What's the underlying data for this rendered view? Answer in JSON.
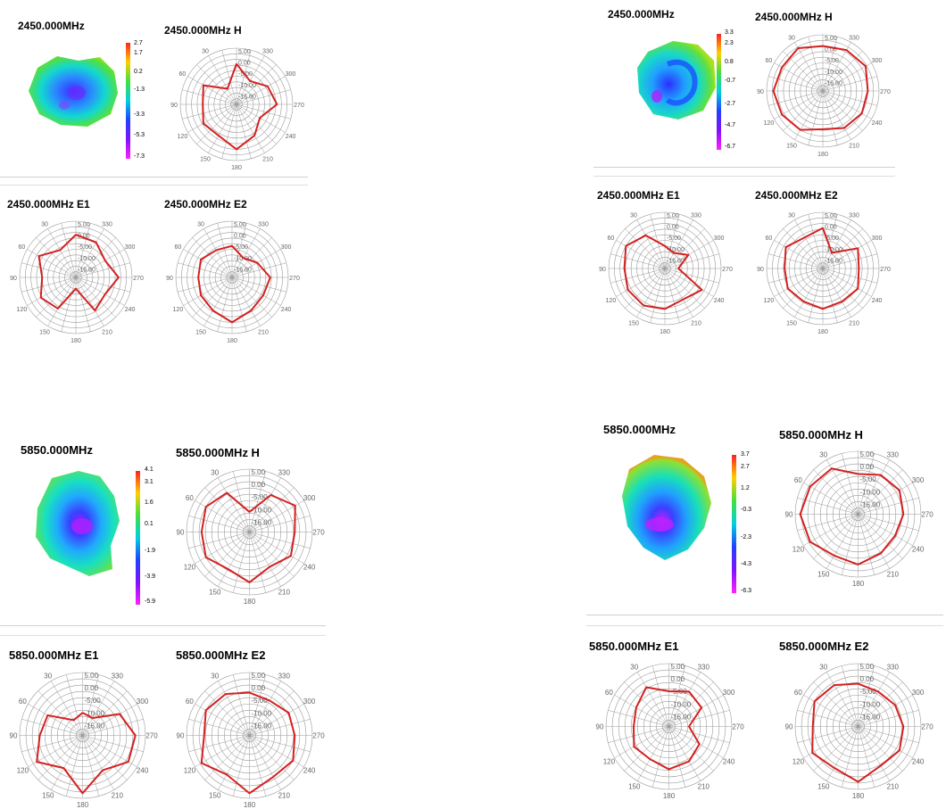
{
  "polar_ticks": {
    "angles": [
      "30",
      "60",
      "90",
      "120",
      "150",
      "180",
      "210",
      "240",
      "270",
      "300",
      "330"
    ],
    "rings": [
      "5.00",
      "0.00",
      "-5.00",
      "-10.00",
      "-15.00"
    ]
  },
  "colors": {
    "trace": "#d42020",
    "grid": "#9a9a9a"
  },
  "groups": [
    {
      "id": "tl",
      "freq_label": "2450.000MHz",
      "colorbar_ticks": [
        "2.7",
        "1.7",
        "0.2",
        "-1.3",
        "-3.3",
        "-5.3",
        "-7.3"
      ],
      "polar_titles": [
        "2450.000MHz  H",
        "2450.000MHz  E1",
        "2450.000MHz  E2"
      ]
    },
    {
      "id": "tr",
      "freq_label": "2450.000MHz",
      "colorbar_ticks": [
        "3.3",
        "2.3",
        "0.8",
        "-0.7",
        "-2.7",
        "-4.7",
        "-6.7"
      ],
      "polar_titles": [
        "2450.000MHz  H",
        "2450.000MHz  E1",
        "2450.000MHz  E2"
      ]
    },
    {
      "id": "bl",
      "freq_label": "5850.000MHz",
      "colorbar_ticks": [
        "4.1",
        "3.1",
        "1.6",
        "0.1",
        "-1.9",
        "-3.9",
        "-5.9"
      ],
      "polar_titles": [
        "5850.000MHz  H",
        "5850.000MHz  E1",
        "5850.000MHz  E2"
      ]
    },
    {
      "id": "br",
      "freq_label": "5850.000MHz",
      "colorbar_ticks": [
        "3.7",
        "2.7",
        "1.2",
        "-0.3",
        "-2.3",
        "-4.3",
        "-6.3"
      ],
      "polar_titles": [
        "5850.000MHz  H",
        "5850.000MHz  E1",
        "5850.000MHz  E2"
      ]
    }
  ],
  "chart_data": [
    {
      "type": "polar",
      "title": "2450.000MHz  H",
      "theta_deg": [
        0,
        30,
        60,
        90,
        120,
        150,
        180,
        210,
        240,
        270,
        300,
        330
      ],
      "r_db": [
        -2,
        -12,
        -3,
        -5,
        -3,
        -4,
        0,
        -4,
        -8,
        -2,
        -4,
        -8
      ]
    },
    {
      "type": "polar",
      "title": "2450.000MHz  E1",
      "theta_deg": [
        0,
        30,
        60,
        90,
        120,
        150,
        180,
        210,
        240,
        270,
        300,
        330
      ],
      "r_db": [
        -1,
        -6,
        -1,
        -5,
        -2,
        -4,
        -15,
        -3,
        -5,
        -1,
        -5,
        -2
      ]
    },
    {
      "type": "polar",
      "title": "2450.000MHz  E2",
      "theta_deg": [
        0,
        30,
        60,
        90,
        120,
        150,
        180,
        210,
        240,
        270,
        300,
        330
      ],
      "r_db": [
        -6,
        -6,
        -4,
        -5,
        -4,
        -3,
        0,
        -3,
        -4,
        -3,
        -7,
        -10
      ]
    },
    {
      "type": "polar",
      "title": "2450.000MHz  H",
      "theta_deg": [
        0,
        30,
        60,
        90,
        120,
        150,
        180,
        210,
        240,
        270,
        300,
        330
      ],
      "r_db": [
        0,
        2,
        1,
        2,
        1,
        0,
        -3,
        -1,
        0,
        0,
        2,
        1
      ]
    },
    {
      "type": "polar",
      "title": "2450.000MHz  E1",
      "theta_deg": [
        0,
        30,
        60,
        90,
        120,
        150,
        180,
        210,
        240,
        270,
        300,
        330
      ],
      "r_db": [
        -10,
        -3,
        0,
        -2,
        -1,
        -1,
        -2,
        -4,
        -1,
        -14,
        -8,
        -12
      ]
    },
    {
      "type": "polar",
      "title": "2450.000MHz  E2",
      "theta_deg": [
        0,
        30,
        60,
        90,
        120,
        150,
        180,
        210,
        240,
        270,
        300,
        330
      ],
      "r_db": [
        -2,
        -4,
        -1,
        -3,
        -2,
        -3,
        -2,
        -3,
        -2,
        -4,
        -2,
        -12
      ]
    },
    {
      "type": "polar",
      "title": "5850.000MHz  H",
      "theta_deg": [
        0,
        30,
        60,
        90,
        120,
        150,
        180,
        210,
        240,
        270,
        300,
        330
      ],
      "r_db": [
        -12,
        -2,
        0,
        -1,
        0,
        -3,
        0,
        -4,
        -1,
        -2,
        1,
        -3
      ]
    },
    {
      "type": "polar",
      "title": "5850.000MHz  E1",
      "theta_deg": [
        0,
        30,
        60,
        90,
        120,
        150,
        180,
        210,
        240,
        270,
        300,
        330
      ],
      "r_db": [
        -11,
        -13,
        -4,
        -3,
        1,
        -5,
        3,
        -4,
        1,
        1,
        -3,
        -12
      ]
    },
    {
      "type": "polar",
      "title": "5850.000MHz  E2",
      "theta_deg": [
        0,
        30,
        60,
        90,
        120,
        150,
        180,
        210,
        240,
        270,
        300,
        330
      ],
      "r_db": [
        -3,
        -1,
        0,
        -2,
        2,
        -2,
        3,
        -1,
        0,
        -2,
        -2,
        -4
      ]
    },
    {
      "type": "polar",
      "title": "5850.000MHz  H",
      "theta_deg": [
        0,
        30,
        60,
        90,
        120,
        150,
        180,
        210,
        240,
        270,
        300,
        330
      ],
      "r_db": [
        -4,
        1,
        2,
        3,
        2,
        -1,
        0,
        -2,
        -3,
        -2,
        -1,
        -2
      ]
    },
    {
      "type": "polar",
      "title": "5850.000MHz  E1",
      "theta_deg": [
        0,
        30,
        60,
        90,
        120,
        150,
        180,
        210,
        240,
        270,
        300,
        330
      ],
      "r_db": [
        -6,
        -2,
        -5,
        -6,
        -4,
        -5,
        -3,
        -4,
        -6,
        -12,
        -5,
        -4
      ]
    },
    {
      "type": "polar",
      "title": "5850.000MHz  E2",
      "theta_deg": [
        0,
        30,
        60,
        90,
        120,
        150,
        180,
        210,
        240,
        270,
        300,
        330
      ],
      "r_db": [
        -3,
        -1,
        0,
        -2,
        1,
        -1,
        2,
        -2,
        -1,
        -2,
        -3,
        -4
      ]
    }
  ]
}
